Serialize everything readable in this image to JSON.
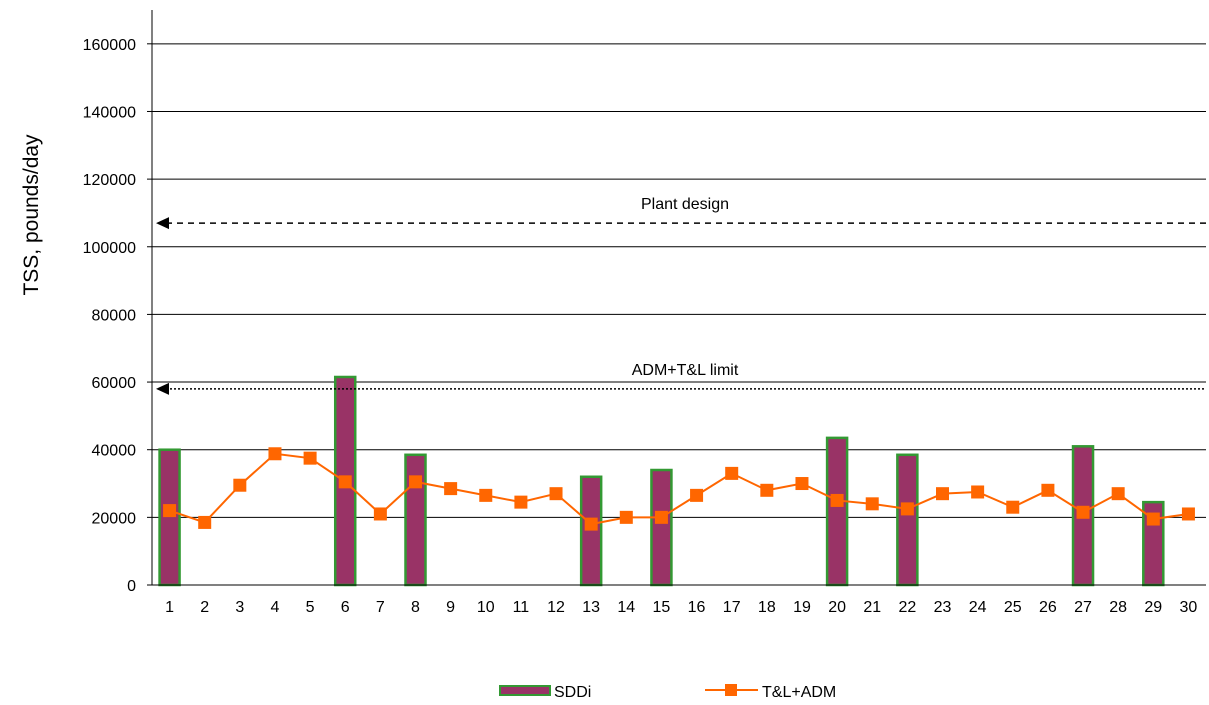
{
  "chart_data": {
    "type": "bar",
    "xlabel": "",
    "ylabel": "TSS, pounds/day",
    "ylim": [
      0,
      170000
    ],
    "y_ticks": [
      0,
      20000,
      40000,
      60000,
      80000,
      100000,
      120000,
      140000,
      160000
    ],
    "grid": "horizontal",
    "legend_position": "bottom",
    "categories": [
      "1",
      "2",
      "3",
      "4",
      "5",
      "6",
      "7",
      "8",
      "9",
      "10",
      "11",
      "12",
      "13",
      "14",
      "15",
      "16",
      "17",
      "18",
      "19",
      "20",
      "21",
      "22",
      "23",
      "24",
      "25",
      "26",
      "27",
      "28",
      "29",
      "30"
    ],
    "series": [
      {
        "name": "SDDi",
        "type": "bar",
        "fill": "#993366",
        "stroke": "#339933",
        "values": [
          40000,
          null,
          null,
          null,
          null,
          61500,
          null,
          38500,
          null,
          null,
          null,
          null,
          32000,
          null,
          34000,
          null,
          null,
          null,
          null,
          43500,
          null,
          38500,
          null,
          null,
          null,
          null,
          41000,
          null,
          24500,
          null
        ]
      },
      {
        "name": "T&L+ADM",
        "type": "line",
        "color": "#ff6600",
        "values": [
          22000,
          18500,
          29500,
          38800,
          37500,
          30500,
          21000,
          30500,
          28500,
          26500,
          24500,
          27000,
          18000,
          20000,
          20000,
          26500,
          33000,
          28000,
          30000,
          25000,
          24000,
          22500,
          27000,
          27500,
          23000,
          28000,
          21500,
          27000,
          19500,
          21000
        ]
      }
    ],
    "annotations": [
      {
        "label": "Plant design",
        "value": 107000,
        "style": "dashed"
      },
      {
        "label": "ADM+T&L limit",
        "value": 58000,
        "style": "dotted"
      }
    ]
  }
}
